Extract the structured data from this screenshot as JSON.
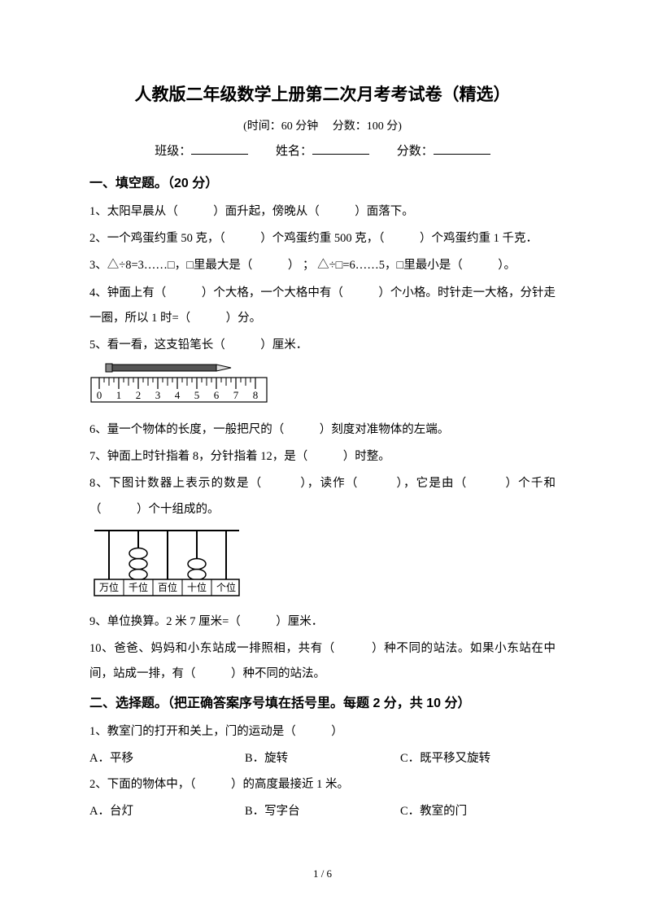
{
  "title": "人教版二年级数学上册第二次月考考试卷（精选）",
  "subtitle": "(时间：60 分钟　 分数：100 分)",
  "info": {
    "class_label": "班级：",
    "name_label": "姓名：",
    "score_label": "分数："
  },
  "section1": {
    "heading": "一、填空题。（20 分）",
    "q1": "1、太阳早晨从（　　　）面升起，傍晚从（　　　）面落下。",
    "q2": "2、一个鸡蛋约重 50 克，（　　　）个鸡蛋约重 500 克，（　　　）个鸡蛋约重 1 千克．",
    "q3": "3、△÷8=3……□，□里最大是（　　　）  ； △÷□=6……5，□里最小是（　　　）。",
    "q4": "4、钟面上有（　　　）个大格，一个大格中有（　　　）个小格。时针走一大格，分针走一圈，所以 1 时=（　　　）分。",
    "q5": "5、看一看，这支铅笔长（　　　）厘米．",
    "q6": "6、量一个物体的长度，一般把尺的（　　　）刻度对准物体的左端。",
    "q7": "7、钟面上时针指着 8，分针指着 12，是（　　　）时整。",
    "q8": "8、下图计数器上表示的数是（　　　），读作（　　　），它是由（　　　）个千和（　　　）个十组成的。",
    "q9": "9、单位换算。2 米 7 厘米=（　　　）厘米．",
    "q10": "10、爸爸、妈妈和小东站成一排照相，共有（　　　）种不同的站法。如果小东站在中间，站成一排，有（　　　）种不同的站法。"
  },
  "section2": {
    "heading": "二、选择题。（把正确答案序号填在括号里。每题 2 分，共 10 分）",
    "q1": {
      "stem": "1、教室门的打开和关上，门的运动是（　　　）",
      "A": "A．平移",
      "B": "B．旋转",
      "C": "C．既平移又旋转"
    },
    "q2": {
      "stem": "2、下面的物体中，（　　　）的高度最接近 1 米。",
      "A": "A．台灯",
      "B": "B．写字台",
      "C": "C．教室的门"
    }
  },
  "ruler": {
    "ticks": [
      "0",
      "1",
      "2",
      "3",
      "4",
      "5",
      "6",
      "7",
      "8"
    ]
  },
  "abacus": {
    "labels": [
      "万位",
      "千位",
      "百位",
      "十位",
      "个位"
    ],
    "beads": [
      0,
      3,
      0,
      2,
      0
    ]
  },
  "page": "1 / 6"
}
